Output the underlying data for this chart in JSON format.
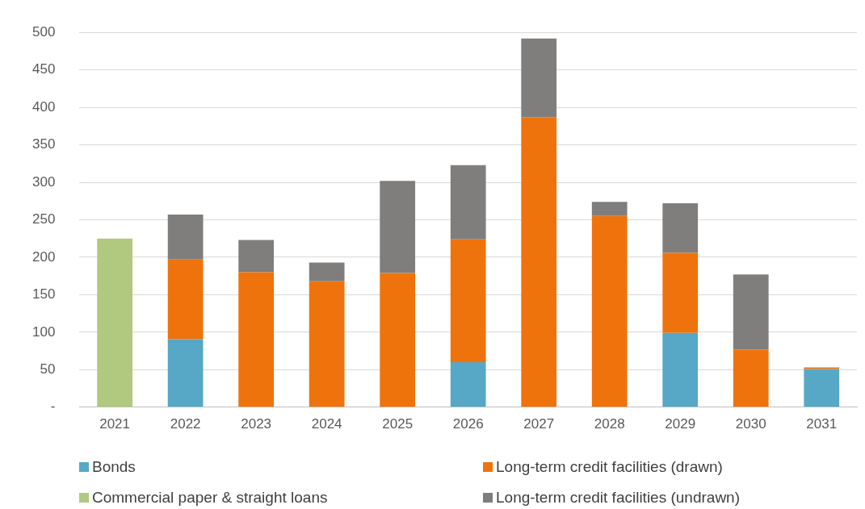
{
  "chart_data": {
    "type": "bar",
    "stacked": true,
    "categories": [
      "2021",
      "2022",
      "2023",
      "2024",
      "2025",
      "2026",
      "2027",
      "2028",
      "2029",
      "2030",
      "2031"
    ],
    "series": [
      {
        "name": "Bonds",
        "color": "#56a8c6",
        "values": [
          null,
          91,
          null,
          null,
          null,
          60,
          null,
          null,
          99,
          null,
          51
        ]
      },
      {
        "name": "Commercial paper & straight loans",
        "color": "#b0c97f",
        "values": [
          225,
          null,
          null,
          null,
          null,
          null,
          null,
          null,
          null,
          null,
          null
        ]
      },
      {
        "name": "Long-term credit facilities (drawn)",
        "color": "#ef730c",
        "values": [
          null,
          106,
          180,
          168,
          179,
          164,
          387,
          255,
          107,
          77,
          2
        ]
      },
      {
        "name": "Long-term credit facilities (undrawn)",
        "color": "#7f7e7c",
        "values": [
          null,
          60,
          43,
          25,
          123,
          99,
          105,
          19,
          66,
          100,
          null
        ]
      }
    ],
    "ylim": [
      0,
      500
    ],
    "yticks": [
      {
        "value": 0,
        "label": "-"
      },
      50,
      100,
      150,
      200,
      250,
      300,
      350,
      400,
      450,
      500
    ],
    "grid": "y",
    "legend": "bottom"
  }
}
